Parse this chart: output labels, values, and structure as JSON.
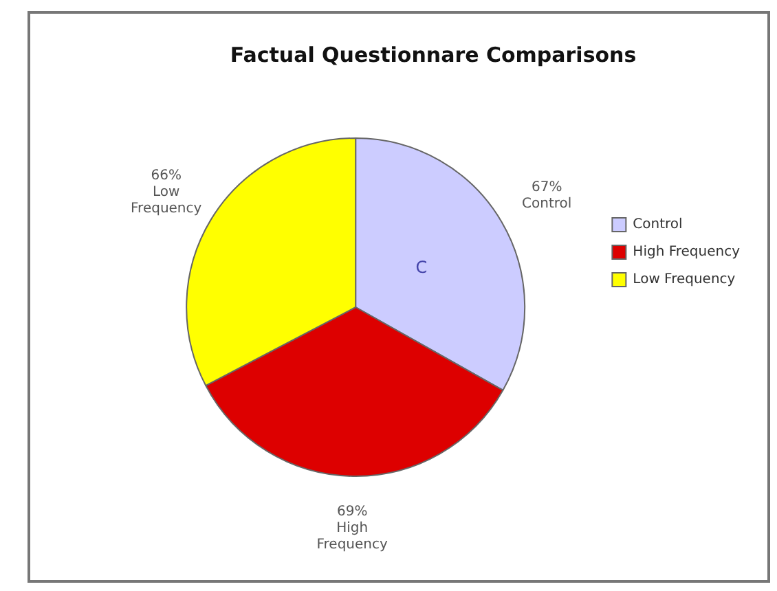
{
  "chart_data": {
    "type": "pie",
    "title": "Factual Questionnare Comparisons",
    "categories": [
      "Control",
      "High Frequency",
      "Low Frequency"
    ],
    "values": [
      67,
      69,
      66
    ],
    "value_labels": [
      "67%",
      "69%",
      "66%"
    ],
    "colors": [
      "#ccccff",
      "#dd0000",
      "#ffff00"
    ],
    "annotations": [
      "C"
    ],
    "legend": "right"
  }
}
